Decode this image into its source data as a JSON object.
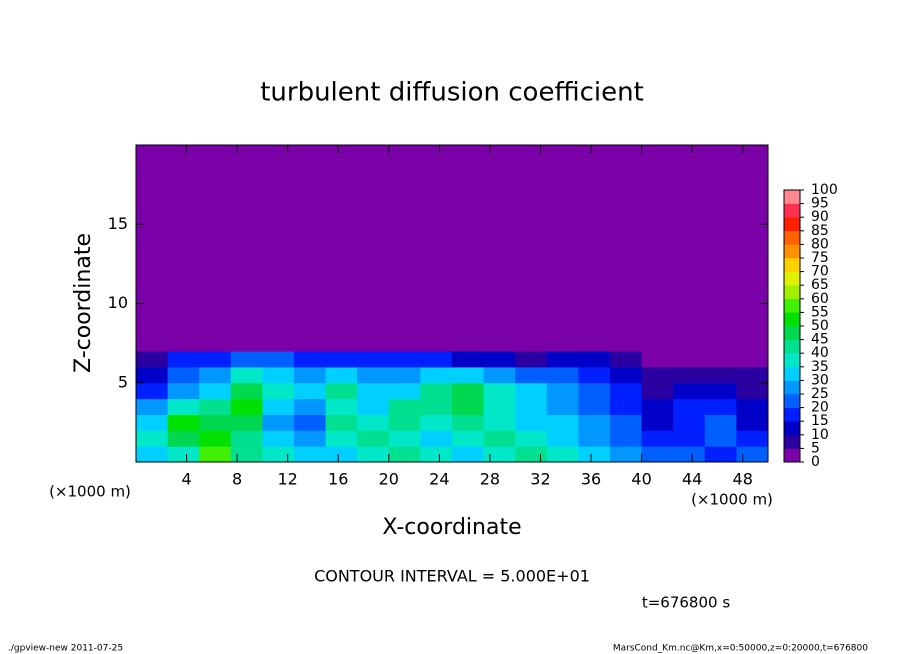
{
  "chart_data": {
    "type": "heatmap",
    "title": "turbulent diffusion coefficient",
    "x_label": "X-coordinate",
    "y_label": "Z-coordinate",
    "x_unit": "(×1000 m)",
    "y_unit": "(×1000 m)",
    "xlim": [
      0,
      50
    ],
    "ylim": [
      0,
      20
    ],
    "xticks": [
      4,
      8,
      12,
      16,
      20,
      24,
      28,
      32,
      36,
      40,
      44,
      48
    ],
    "yticks": [
      5,
      10,
      15
    ],
    "xbins": [
      0,
      2.5,
      5,
      7.5,
      10,
      12.5,
      15,
      17.5,
      20,
      22.5,
      25,
      27.5,
      30,
      32.5,
      35,
      37.5,
      40,
      42.5,
      45,
      47.5,
      50
    ],
    "ybins": [
      0,
      1,
      2,
      3,
      4,
      5,
      6,
      7,
      20
    ],
    "values": [
      [
        30,
        35,
        55,
        40,
        35,
        30,
        30,
        35,
        40,
        35,
        30,
        35,
        40,
        35,
        30,
        25,
        20,
        20,
        15,
        20
      ],
      [
        35,
        45,
        50,
        40,
        30,
        25,
        35,
        40,
        35,
        30,
        35,
        40,
        35,
        30,
        25,
        20,
        15,
        15,
        20,
        15
      ],
      [
        30,
        50,
        45,
        45,
        25,
        20,
        40,
        35,
        40,
        35,
        40,
        35,
        30,
        30,
        25,
        20,
        10,
        15,
        20,
        10
      ],
      [
        25,
        35,
        40,
        50,
        30,
        25,
        35,
        30,
        40,
        40,
        45,
        35,
        30,
        25,
        20,
        15,
        10,
        15,
        15,
        10
      ],
      [
        15,
        25,
        30,
        45,
        35,
        30,
        40,
        30,
        30,
        40,
        45,
        35,
        30,
        25,
        20,
        15,
        5,
        10,
        10,
        5
      ],
      [
        10,
        20,
        25,
        35,
        30,
        25,
        30,
        25,
        25,
        30,
        30,
        25,
        20,
        20,
        15,
        10,
        5,
        5,
        5,
        5
      ],
      [
        5,
        15,
        15,
        20,
        20,
        15,
        15,
        15,
        15,
        15,
        10,
        10,
        5,
        10,
        10,
        5,
        0,
        0,
        0,
        0
      ],
      [
        0,
        0,
        0,
        0,
        0,
        0,
        0,
        0,
        0,
        0,
        0,
        0,
        0,
        0,
        0,
        0,
        0,
        0,
        0,
        0
      ]
    ],
    "colorbar": {
      "levels": [
        0,
        5,
        10,
        15,
        20,
        25,
        30,
        35,
        40,
        45,
        50,
        55,
        60,
        65,
        70,
        75,
        80,
        85,
        90,
        95,
        100
      ],
      "colors": [
        "#7a00a8",
        "#2a00a0",
        "#0000c8",
        "#0020ff",
        "#0060ff",
        "#0098ff",
        "#00d0ff",
        "#00e8c8",
        "#00e090",
        "#00d850",
        "#00e000",
        "#40f000",
        "#a0f000",
        "#e0f000",
        "#ffd000",
        "#ff9000",
        "#ff6000",
        "#ff2000",
        "#ff3050",
        "#ff8890"
      ]
    },
    "contour_interval": "CONTOUR INTERVAL = 5.000E+01",
    "time_label": "t=676800 s",
    "footer_left": "./gpview-new   2011-07-25",
    "footer_right": "MarsCond_Km.nc@Km,x=0:50000,z=0:20000,t=676800"
  }
}
